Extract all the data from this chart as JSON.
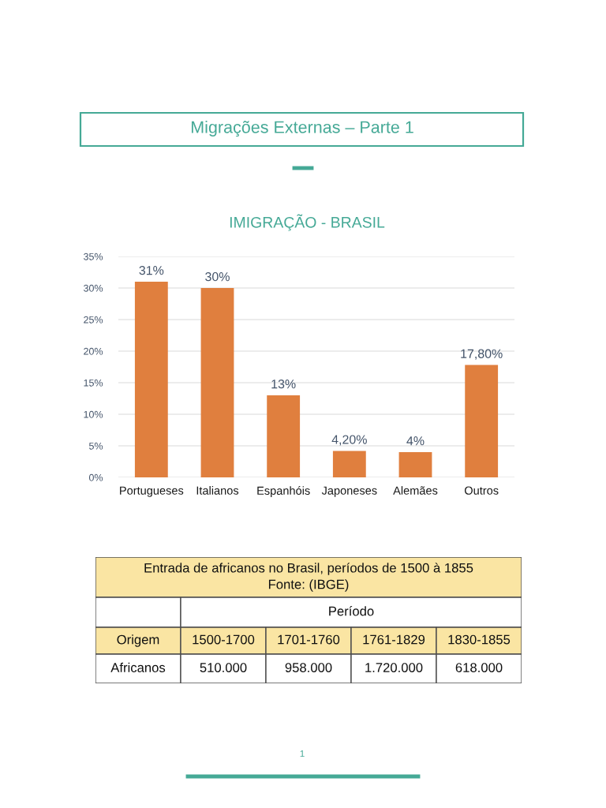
{
  "chart_data": [
    {
      "type": "bar",
      "title": "IMIGRAÇÃO - BRASIL",
      "annotations": [
        "Migrações Externas – Parte 1"
      ],
      "categories": [
        "Portugueses",
        "Italianos",
        "Espanhóis",
        "Japoneses",
        "Alemães",
        "Outros"
      ],
      "values": [
        31,
        30,
        13,
        4.2,
        4,
        17.8
      ],
      "color": "#e07f3e",
      "value_labels": [
        "31%",
        "30%",
        "13%",
        "4,20%",
        "4%",
        "17,80%"
      ],
      "ylim": [
        0,
        35
      ],
      "yticks": [
        {
          "value": 0,
          "label": "0%"
        },
        {
          "value": 5,
          "label": "5%"
        },
        {
          "value": 10,
          "label": "10%"
        },
        {
          "value": 15,
          "label": "15%"
        },
        {
          "value": 20,
          "label": "20%"
        },
        {
          "value": 25,
          "label": "25%"
        },
        {
          "value": 30,
          "label": "30%"
        },
        {
          "value": 35,
          "label": "35%"
        }
      ],
      "grid": "y"
    },
    {
      "type": "other",
      "title": "Entrada de africanos no Brasil, períodos de 1500 à 1855",
      "subtitle": "Fonte: (IBGE)",
      "xlabel": "Período",
      "ylabel": "Origem",
      "color": "#fae5a3",
      "categories": [
        "1500-1700",
        "1701-1760",
        "1761-1829",
        "1830-1855"
      ],
      "y_categories": [
        "Africanos"
      ],
      "cell_labels": [
        [
          "510.000",
          "958.000",
          "1.720.000",
          "618.000"
        ]
      ],
      "annotations": [
        "1"
      ]
    }
  ]
}
